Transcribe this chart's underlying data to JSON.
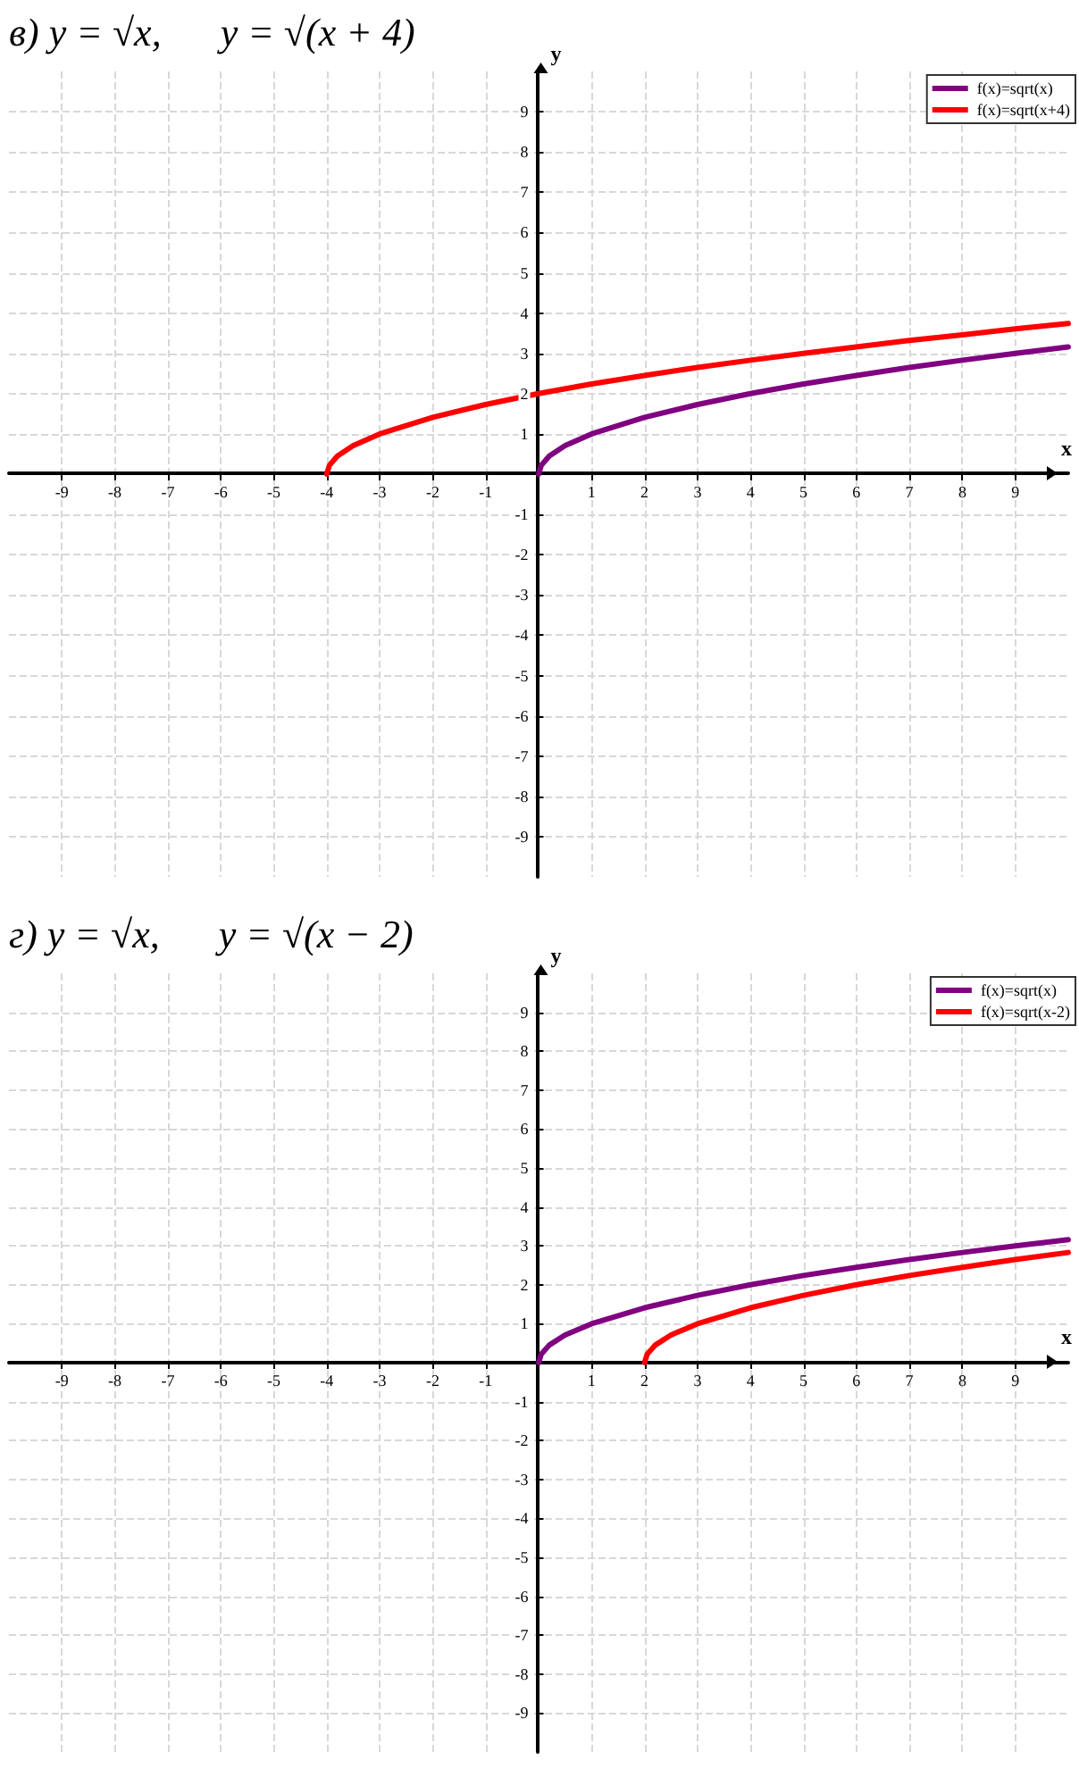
{
  "chart_data": [
    {
      "type": "line",
      "title": "в) y = √x,      y = √(x + 4)",
      "xlabel": "x",
      "ylabel": "y",
      "xlim": [
        -10,
        10
      ],
      "ylim": [
        -10,
        10
      ],
      "xticks": [
        -9,
        -8,
        -7,
        -6,
        -5,
        -4,
        -3,
        -2,
        -1,
        1,
        2,
        3,
        4,
        5,
        6,
        7,
        8,
        9
      ],
      "yticks": [
        -9,
        -8,
        -7,
        -6,
        -5,
        -4,
        -3,
        -2,
        -1,
        1,
        2,
        3,
        4,
        5,
        6,
        7,
        8,
        9
      ],
      "grid": true,
      "legend": "top right",
      "series": [
        {
          "name": "f(x)=sqrt(x)",
          "color": "#800080",
          "x": [
            0,
            0.05,
            0.2,
            0.5,
            1,
            2,
            3,
            4,
            5,
            6,
            7,
            8,
            9,
            10
          ],
          "values": [
            0,
            0.22,
            0.45,
            0.71,
            1,
            1.41,
            1.73,
            2,
            2.24,
            2.45,
            2.65,
            2.83,
            3,
            3.16
          ]
        },
        {
          "name": "f(x)=sqrt(x+4)",
          "color": "#ff0000",
          "x": [
            -4,
            -3.95,
            -3.8,
            -3.5,
            -3,
            -2,
            -1,
            0,
            1,
            2,
            3,
            4,
            5,
            6,
            7,
            8,
            9,
            10
          ],
          "values": [
            0,
            0.22,
            0.45,
            0.71,
            1,
            1.41,
            1.73,
            2,
            2.24,
            2.45,
            2.65,
            2.83,
            3,
            3.16,
            3.32,
            3.46,
            3.61,
            3.74
          ]
        }
      ]
    },
    {
      "type": "line",
      "title": "г) y = √x,      y = √(x − 2)",
      "xlabel": "x",
      "ylabel": "y",
      "xlim": [
        -10,
        10
      ],
      "ylim": [
        -10,
        10
      ],
      "xticks": [
        -9,
        -8,
        -7,
        -6,
        -5,
        -4,
        -3,
        -2,
        -1,
        1,
        2,
        3,
        4,
        5,
        6,
        7,
        8,
        9
      ],
      "yticks": [
        -9,
        -8,
        -7,
        -6,
        -5,
        -4,
        -3,
        -2,
        -1,
        1,
        2,
        3,
        4,
        5,
        6,
        7,
        8,
        9
      ],
      "grid": true,
      "legend": "top right",
      "series": [
        {
          "name": "f(x)=sqrt(x)",
          "color": "#800080",
          "x": [
            0,
            0.05,
            0.2,
            0.5,
            1,
            2,
            3,
            4,
            5,
            6,
            7,
            8,
            9,
            10
          ],
          "values": [
            0,
            0.22,
            0.45,
            0.71,
            1,
            1.41,
            1.73,
            2,
            2.24,
            2.45,
            2.65,
            2.83,
            3,
            3.16
          ]
        },
        {
          "name": "f(x)=sqrt(x-2)",
          "color": "#ff0000",
          "x": [
            2,
            2.05,
            2.2,
            2.5,
            3,
            4,
            5,
            6,
            7,
            8,
            9,
            10
          ],
          "values": [
            0,
            0.22,
            0.45,
            0.71,
            1,
            1.41,
            1.73,
            2,
            2.24,
            2.45,
            2.65,
            2.83
          ]
        }
      ]
    }
  ]
}
